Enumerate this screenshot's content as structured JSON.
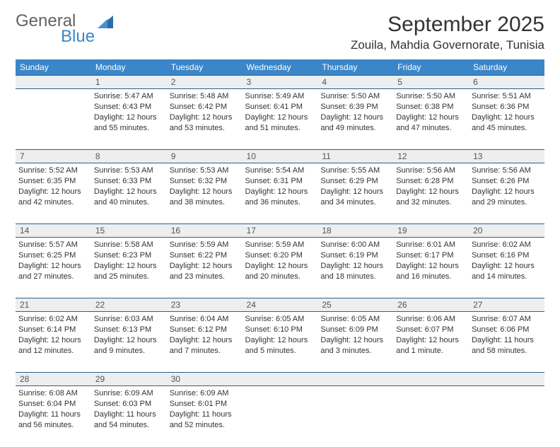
{
  "logo": {
    "text1": "General",
    "text2": "Blue"
  },
  "title": "September 2025",
  "location": "Zouila, Mahdia Governorate, Tunisia",
  "colors": {
    "header_bg": "#3a86c8",
    "header_text": "#ffffff",
    "rule": "#2f5f8f",
    "daynum_bg": "#eceeef",
    "body_text": "#333333",
    "page_bg": "#ffffff"
  },
  "day_headers": [
    "Sunday",
    "Monday",
    "Tuesday",
    "Wednesday",
    "Thursday",
    "Friday",
    "Saturday"
  ],
  "weeks": [
    [
      null,
      {
        "n": "1",
        "sr": "5:47 AM",
        "ss": "6:43 PM",
        "dl": "12 hours and 55 minutes."
      },
      {
        "n": "2",
        "sr": "5:48 AM",
        "ss": "6:42 PM",
        "dl": "12 hours and 53 minutes."
      },
      {
        "n": "3",
        "sr": "5:49 AM",
        "ss": "6:41 PM",
        "dl": "12 hours and 51 minutes."
      },
      {
        "n": "4",
        "sr": "5:50 AM",
        "ss": "6:39 PM",
        "dl": "12 hours and 49 minutes."
      },
      {
        "n": "5",
        "sr": "5:50 AM",
        "ss": "6:38 PM",
        "dl": "12 hours and 47 minutes."
      },
      {
        "n": "6",
        "sr": "5:51 AM",
        "ss": "6:36 PM",
        "dl": "12 hours and 45 minutes."
      }
    ],
    [
      {
        "n": "7",
        "sr": "5:52 AM",
        "ss": "6:35 PM",
        "dl": "12 hours and 42 minutes."
      },
      {
        "n": "8",
        "sr": "5:53 AM",
        "ss": "6:33 PM",
        "dl": "12 hours and 40 minutes."
      },
      {
        "n": "9",
        "sr": "5:53 AM",
        "ss": "6:32 PM",
        "dl": "12 hours and 38 minutes."
      },
      {
        "n": "10",
        "sr": "5:54 AM",
        "ss": "6:31 PM",
        "dl": "12 hours and 36 minutes."
      },
      {
        "n": "11",
        "sr": "5:55 AM",
        "ss": "6:29 PM",
        "dl": "12 hours and 34 minutes."
      },
      {
        "n": "12",
        "sr": "5:56 AM",
        "ss": "6:28 PM",
        "dl": "12 hours and 32 minutes."
      },
      {
        "n": "13",
        "sr": "5:56 AM",
        "ss": "6:26 PM",
        "dl": "12 hours and 29 minutes."
      }
    ],
    [
      {
        "n": "14",
        "sr": "5:57 AM",
        "ss": "6:25 PM",
        "dl": "12 hours and 27 minutes."
      },
      {
        "n": "15",
        "sr": "5:58 AM",
        "ss": "6:23 PM",
        "dl": "12 hours and 25 minutes."
      },
      {
        "n": "16",
        "sr": "5:59 AM",
        "ss": "6:22 PM",
        "dl": "12 hours and 23 minutes."
      },
      {
        "n": "17",
        "sr": "5:59 AM",
        "ss": "6:20 PM",
        "dl": "12 hours and 20 minutes."
      },
      {
        "n": "18",
        "sr": "6:00 AM",
        "ss": "6:19 PM",
        "dl": "12 hours and 18 minutes."
      },
      {
        "n": "19",
        "sr": "6:01 AM",
        "ss": "6:17 PM",
        "dl": "12 hours and 16 minutes."
      },
      {
        "n": "20",
        "sr": "6:02 AM",
        "ss": "6:16 PM",
        "dl": "12 hours and 14 minutes."
      }
    ],
    [
      {
        "n": "21",
        "sr": "6:02 AM",
        "ss": "6:14 PM",
        "dl": "12 hours and 12 minutes."
      },
      {
        "n": "22",
        "sr": "6:03 AM",
        "ss": "6:13 PM",
        "dl": "12 hours and 9 minutes."
      },
      {
        "n": "23",
        "sr": "6:04 AM",
        "ss": "6:12 PM",
        "dl": "12 hours and 7 minutes."
      },
      {
        "n": "24",
        "sr": "6:05 AM",
        "ss": "6:10 PM",
        "dl": "12 hours and 5 minutes."
      },
      {
        "n": "25",
        "sr": "6:05 AM",
        "ss": "6:09 PM",
        "dl": "12 hours and 3 minutes."
      },
      {
        "n": "26",
        "sr": "6:06 AM",
        "ss": "6:07 PM",
        "dl": "12 hours and 1 minute."
      },
      {
        "n": "27",
        "sr": "6:07 AM",
        "ss": "6:06 PM",
        "dl": "11 hours and 58 minutes."
      }
    ],
    [
      {
        "n": "28",
        "sr": "6:08 AM",
        "ss": "6:04 PM",
        "dl": "11 hours and 56 minutes."
      },
      {
        "n": "29",
        "sr": "6:09 AM",
        "ss": "6:03 PM",
        "dl": "11 hours and 54 minutes."
      },
      {
        "n": "30",
        "sr": "6:09 AM",
        "ss": "6:01 PM",
        "dl": "11 hours and 52 minutes."
      },
      null,
      null,
      null,
      null
    ]
  ],
  "labels": {
    "sunrise": "Sunrise:",
    "sunset": "Sunset:",
    "daylight": "Daylight:"
  }
}
